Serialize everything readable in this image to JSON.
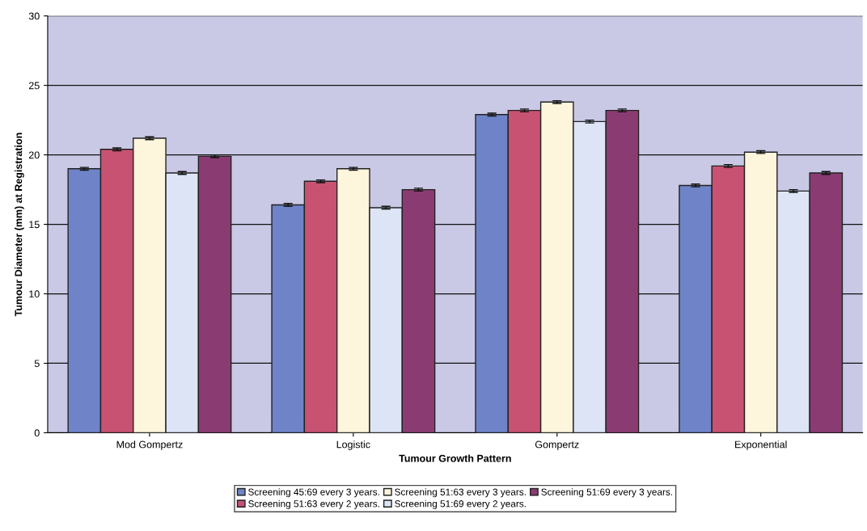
{
  "chart_data": {
    "type": "bar",
    "xlabel": "Tumour Growth Pattern",
    "ylabel": "Tumour Diameter (mm) at Registration",
    "categories": [
      "Mod Gompertz",
      "Logistic",
      "Gompertz",
      "Exponential"
    ],
    "series": [
      {
        "name": "Screening 45:69 every 3 years.",
        "color": "#6f84c8",
        "values": [
          19.0,
          16.4,
          22.9,
          17.8
        ],
        "errors": [
          0.1,
          0.1,
          0.1,
          0.1
        ]
      },
      {
        "name": "Screening 51:63 every 2 years.",
        "color": "#c85272",
        "values": [
          20.4,
          18.1,
          23.2,
          19.2
        ],
        "errors": [
          0.1,
          0.1,
          0.1,
          0.1
        ]
      },
      {
        "name": "Screening 51:63 every 3 years.",
        "color": "#fdf5dc",
        "values": [
          21.2,
          19.0,
          23.8,
          20.2
        ],
        "errors": [
          0.1,
          0.1,
          0.1,
          0.1
        ]
      },
      {
        "name": "Screening 51:69 every 2 years.",
        "color": "#dce4f6",
        "values": [
          18.7,
          16.2,
          22.4,
          17.4
        ],
        "errors": [
          0.1,
          0.1,
          0.1,
          0.1
        ]
      },
      {
        "name": "Screening 51:69 every 3 years.",
        "color": "#8a3c72",
        "values": [
          19.9,
          17.5,
          23.2,
          18.7
        ],
        "errors": [
          0.1,
          0.1,
          0.1,
          0.1
        ]
      }
    ],
    "ylim": [
      0,
      30
    ],
    "yticks": [
      0,
      5,
      10,
      15,
      20,
      25,
      30
    ],
    "grid": "y",
    "legend": "bottom"
  }
}
